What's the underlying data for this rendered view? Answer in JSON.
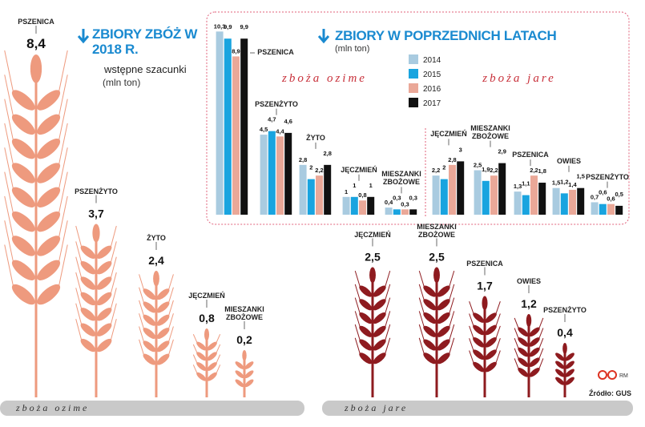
{
  "chart_data": [
    {
      "type": "pictogram",
      "title": "ZBIORY ZBÓŻ W 2018 R.",
      "subtitle": "wstępne szacunki",
      "unit": "(mln ton)",
      "groups": [
        {
          "name": "zboża ozime",
          "color": "#ee9a7e",
          "categories": [
            "PSZENICA",
            "PSZENŻYTO",
            "ŻYTO",
            "JĘCZMIEŃ",
            "MIESZANKI ZBOŻOWE"
          ],
          "values": [
            8.4,
            3.7,
            2.4,
            0.8,
            0.2
          ],
          "value_labels": [
            "8,4",
            "3,7",
            "2,4",
            "0,8",
            "0,2"
          ]
        },
        {
          "name": "zboża jare",
          "color": "#8e1b1f",
          "categories": [
            "JĘCZMIEŃ",
            "MIESZANKI ZBOŻOWE",
            "PSZENICA",
            "OWIES",
            "PSZENŻYTO"
          ],
          "values": [
            2.5,
            2.5,
            1.7,
            1.2,
            0.4
          ],
          "value_labels": [
            "2,5",
            "2,5",
            "1,7",
            "1,2",
            "0,4"
          ]
        }
      ]
    },
    {
      "type": "grouped-bar",
      "title": "ZBIORY W POPRZEDNICH LATACH",
      "subtitle": "(mln ton)",
      "groups": [
        {
          "name": "zboża ozime",
          "categories": [
            "PSZENICA",
            "PSZENŻYTO",
            "ŻYTO",
            "JĘCZMIEŃ",
            "MIESZANKI ZBOŻOWE"
          ]
        },
        {
          "name": "zboża jare",
          "categories": [
            "JĘCZMIEŃ",
            "MIESZANKI ZBOŻOWE",
            "PSZENICA",
            "OWIES",
            "PSZENŻYTO"
          ]
        }
      ],
      "series": [
        {
          "name": "2014",
          "color": "#a9cbe0",
          "values": [
            10.3,
            4.5,
            2.8,
            1,
            0.4,
            2.2,
            2.5,
            1.3,
            1.5,
            0.7
          ],
          "value_labels": [
            "10,3",
            "4,5",
            "2,8",
            "1",
            "0,4",
            "2,2",
            "2,5",
            "1,3",
            "1,5",
            "0,7"
          ]
        },
        {
          "name": "2015",
          "color": "#19a4df",
          "values": [
            9.9,
            4.7,
            2,
            1,
            0.3,
            2,
            1.9,
            1.1,
            1.2,
            0.6
          ],
          "value_labels": [
            "9,9",
            "4,7",
            "2",
            "1",
            "0,3",
            "2",
            "1,9",
            "1,1",
            "1,2",
            "0,6"
          ]
        },
        {
          "name": "2016",
          "color": "#eaa898",
          "values": [
            8.9,
            4.4,
            2.2,
            0.8,
            0.3,
            2.8,
            2.2,
            2.2,
            1.4,
            0.6
          ],
          "value_labels": [
            "8,9",
            "4,4",
            "2,2",
            "0,8",
            "0,3",
            "2,8",
            "2,2",
            "2,2",
            "1,4",
            "0,6"
          ]
        },
        {
          "name": "2017",
          "color": "#111111",
          "values": [
            9.9,
            4.6,
            2.8,
            1,
            0.3,
            3,
            2.9,
            1.8,
            1.5,
            0.5
          ],
          "value_labels": [
            "9,9",
            "4,6",
            "2,8",
            "1",
            "0,3",
            "3",
            "2,9",
            "1,8",
            "1,5",
            "0,5"
          ]
        }
      ]
    }
  ],
  "source": "Źródło: GUS",
  "credit": "RM"
}
